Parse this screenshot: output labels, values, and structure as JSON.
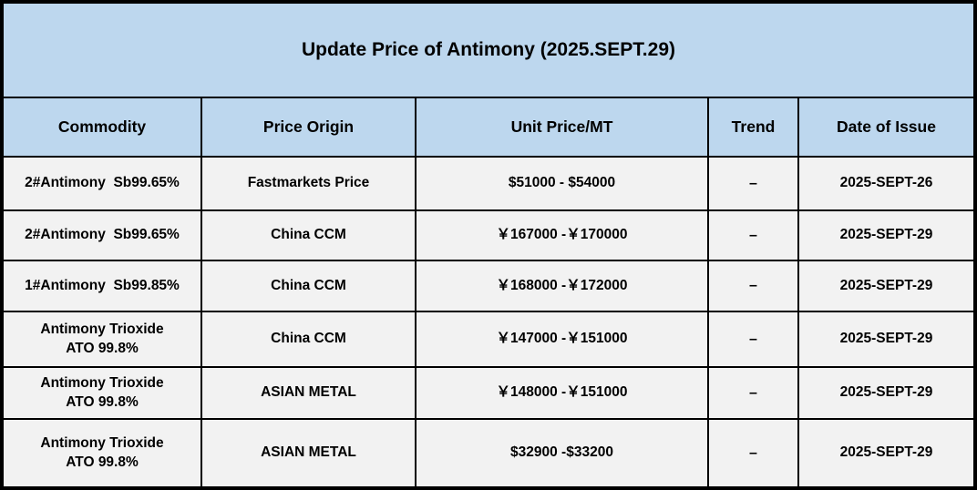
{
  "title": "Update Price of Antimony (2025.SEPT.29)",
  "columns": {
    "commodity": "Commodity",
    "origin": "Price Origin",
    "price": "Unit Price/MT",
    "trend": "Trend",
    "date": "Date of Issue"
  },
  "rows": [
    {
      "commodity": "2#Antimony  Sb99.65%",
      "origin": "Fastmarkets Price",
      "price": "$51000 - $54000",
      "trend": "–",
      "date": "2025-SEPT-26"
    },
    {
      "commodity": "2#Antimony  Sb99.65%",
      "origin": "China CCM",
      "price": "￥167000 -￥170000",
      "trend": "–",
      "date": "2025-SEPT-29"
    },
    {
      "commodity": "1#Antimony  Sb99.85%",
      "origin": "China CCM",
      "price": "￥168000 -￥172000",
      "trend": "–",
      "date": "2025-SEPT-29"
    },
    {
      "commodity": "Antimony Trioxide\nATO 99.8%",
      "origin": "China CCM",
      "price": "￥147000 -￥151000",
      "trend": "–",
      "date": "2025-SEPT-29"
    },
    {
      "commodity": "Antimony Trioxide\nATO 99.8%",
      "origin": "ASIAN METAL",
      "price": "￥148000 -￥151000",
      "trend": "–",
      "date": "2025-SEPT-29"
    },
    {
      "commodity": "Antimony Trioxide\nATO 99.8%",
      "origin": "ASIAN METAL",
      "price": "$32900 -$33200",
      "trend": "–",
      "date": "2025-SEPT-29"
    }
  ],
  "colors": {
    "header_bg": "#BDD7EE",
    "row_bg": "#F2F2F2",
    "border": "#000000",
    "text": "#000000"
  }
}
